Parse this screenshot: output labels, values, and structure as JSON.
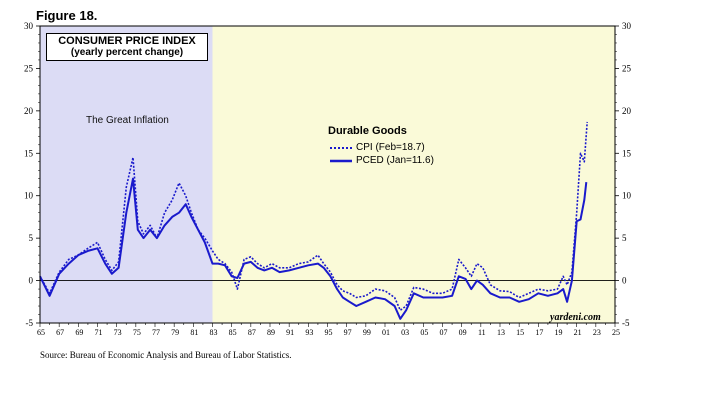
{
  "figure_label": "Figure 18.",
  "source_note": "Source: Bureau of Economic Analysis and Bureau of Labor Statistics.",
  "credit": "yardeni.com",
  "chart_data": {
    "type": "line",
    "title": "CONSUMER PRICE INDEX",
    "subtitle": "(yearly percent change)",
    "legend_title": "Durable Goods",
    "legend_placement": "center",
    "annotations": [
      {
        "text": "The Great Inflation",
        "region": [
          1965,
          1983
        ]
      }
    ],
    "shaded_regions": [
      {
        "from": 1965,
        "to": 1983,
        "color": "#dcdcf5"
      },
      {
        "from": 1983,
        "to": 2025,
        "color": "#fafad8"
      }
    ],
    "xlim": [
      1965,
      2025
    ],
    "ylim": [
      -5,
      30
    ],
    "x_ticks": [
      1965,
      1967,
      1969,
      1971,
      1973,
      1975,
      1977,
      1979,
      1981,
      1983,
      1985,
      1987,
      1989,
      1991,
      1993,
      1995,
      1997,
      1999,
      2001,
      2003,
      2005,
      2007,
      2009,
      2011,
      2013,
      2015,
      2017,
      2019,
      2021,
      2023,
      2025
    ],
    "x_tick_labels": [
      "65",
      "67",
      "69",
      "71",
      "73",
      "75",
      "77",
      "79",
      "81",
      "83",
      "85",
      "87",
      "89",
      "91",
      "93",
      "95",
      "97",
      "99",
      "01",
      "03",
      "05",
      "07",
      "09",
      "11",
      "13",
      "15",
      "17",
      "19",
      "21",
      "23",
      "25"
    ],
    "y_ticks": [
      -5,
      0,
      5,
      10,
      15,
      20,
      25,
      30
    ],
    "y_tick_labels": [
      "-5",
      "0",
      "5",
      "10",
      "15",
      "20",
      "25",
      "30"
    ],
    "zero_line": true,
    "series": [
      {
        "name": "CPI (Feb=18.7)",
        "style": "dotted",
        "color": "#1a1acc",
        "x": [
          1965,
          1966,
          1967,
          1968,
          1969,
          1970,
          1971,
          1971.8,
          1972.5,
          1973.2,
          1974,
          1974.7,
          1975.2,
          1975.8,
          1976.5,
          1977.2,
          1978,
          1978.8,
          1979.5,
          1980.2,
          1980.8,
          1981.5,
          1982.2,
          1983,
          1983.6,
          1984.3,
          1985,
          1985.6,
          1986.3,
          1987,
          1987.7,
          1988.4,
          1989.2,
          1990,
          1991,
          1992,
          1993,
          1994,
          1994.6,
          1995.3,
          1996,
          1996.6,
          1997.3,
          1998,
          1999,
          2000,
          2001,
          2002,
          2002.6,
          2003.2,
          2004,
          2005,
          2006,
          2007,
          2008,
          2008.7,
          2009.4,
          2010,
          2010.6,
          2011.2,
          2012,
          2013,
          2014,
          2015,
          2016,
          2017,
          2018,
          2019,
          2019.6,
          2020,
          2020.5,
          2021,
          2021.4,
          2021.8,
          2022.1
        ],
        "y": [
          0.5,
          -1.5,
          1.0,
          2.5,
          3.0,
          3.8,
          4.5,
          2.5,
          1.2,
          2.2,
          11.0,
          14.5,
          7.0,
          5.5,
          6.5,
          5.0,
          8.0,
          9.5,
          11.5,
          10.0,
          8.0,
          6.0,
          5.0,
          3.5,
          2.5,
          2.0,
          1.0,
          -1.0,
          2.5,
          2.8,
          2.0,
          1.5,
          2.0,
          1.5,
          1.5,
          2.0,
          2.2,
          3.0,
          2.0,
          1.0,
          -0.5,
          -1.2,
          -1.5,
          -2.0,
          -1.8,
          -1.0,
          -1.2,
          -2.0,
          -3.5,
          -3.0,
          -0.8,
          -1.0,
          -1.5,
          -1.5,
          -1.0,
          2.5,
          1.5,
          0.5,
          2.0,
          1.5,
          -0.5,
          -1.2,
          -1.3,
          -2.0,
          -1.5,
          -1.0,
          -1.2,
          -1.0,
          0.5,
          -0.5,
          1.0,
          8.0,
          15.0,
          14.0,
          18.7
        ]
      },
      {
        "name": "PCED (Jan=11.6)",
        "style": "solid",
        "color": "#1a1acc",
        "x": [
          1965,
          1966,
          1967,
          1968,
          1969,
          1970,
          1971,
          1971.8,
          1972.5,
          1973.2,
          1974,
          1974.7,
          1975.2,
          1975.8,
          1976.5,
          1977.2,
          1978,
          1978.8,
          1979.5,
          1980.2,
          1980.8,
          1981.5,
          1982.2,
          1983,
          1983.6,
          1984.3,
          1985,
          1985.6,
          1986.3,
          1987,
          1987.7,
          1988.4,
          1989.2,
          1990,
          1991,
          1992,
          1993,
          1994,
          1994.6,
          1995.3,
          1996,
          1996.6,
          1997.3,
          1998,
          1999,
          2000,
          2001,
          2002,
          2002.6,
          2003.2,
          2004,
          2005,
          2006,
          2007,
          2008,
          2008.7,
          2009.4,
          2010,
          2010.6,
          2011.2,
          2012,
          2013,
          2014,
          2015,
          2016,
          2017,
          2018,
          2019,
          2019.6,
          2020,
          2020.5,
          2021,
          2021.4,
          2021.8,
          2022
        ],
        "y": [
          0.5,
          -1.8,
          0.8,
          2.0,
          3.0,
          3.5,
          3.8,
          2.0,
          0.8,
          1.5,
          8.0,
          12.0,
          6.0,
          5.0,
          6.0,
          5.0,
          6.5,
          7.5,
          8.0,
          9.0,
          7.5,
          6.0,
          4.5,
          2.0,
          2.0,
          1.8,
          0.5,
          0.3,
          2.0,
          2.2,
          1.5,
          1.2,
          1.5,
          1.0,
          1.2,
          1.5,
          1.8,
          2.0,
          1.5,
          0.5,
          -1.0,
          -2.0,
          -2.5,
          -3.0,
          -2.5,
          -2.0,
          -2.2,
          -3.0,
          -4.5,
          -3.5,
          -1.5,
          -2.0,
          -2.0,
          -2.0,
          -1.8,
          0.5,
          0.2,
          -1.0,
          0.0,
          -0.5,
          -1.5,
          -2.0,
          -2.0,
          -2.5,
          -2.2,
          -1.5,
          -1.8,
          -1.5,
          -1.0,
          -2.5,
          0.0,
          7.0,
          7.2,
          9.5,
          11.6
        ]
      }
    ]
  }
}
